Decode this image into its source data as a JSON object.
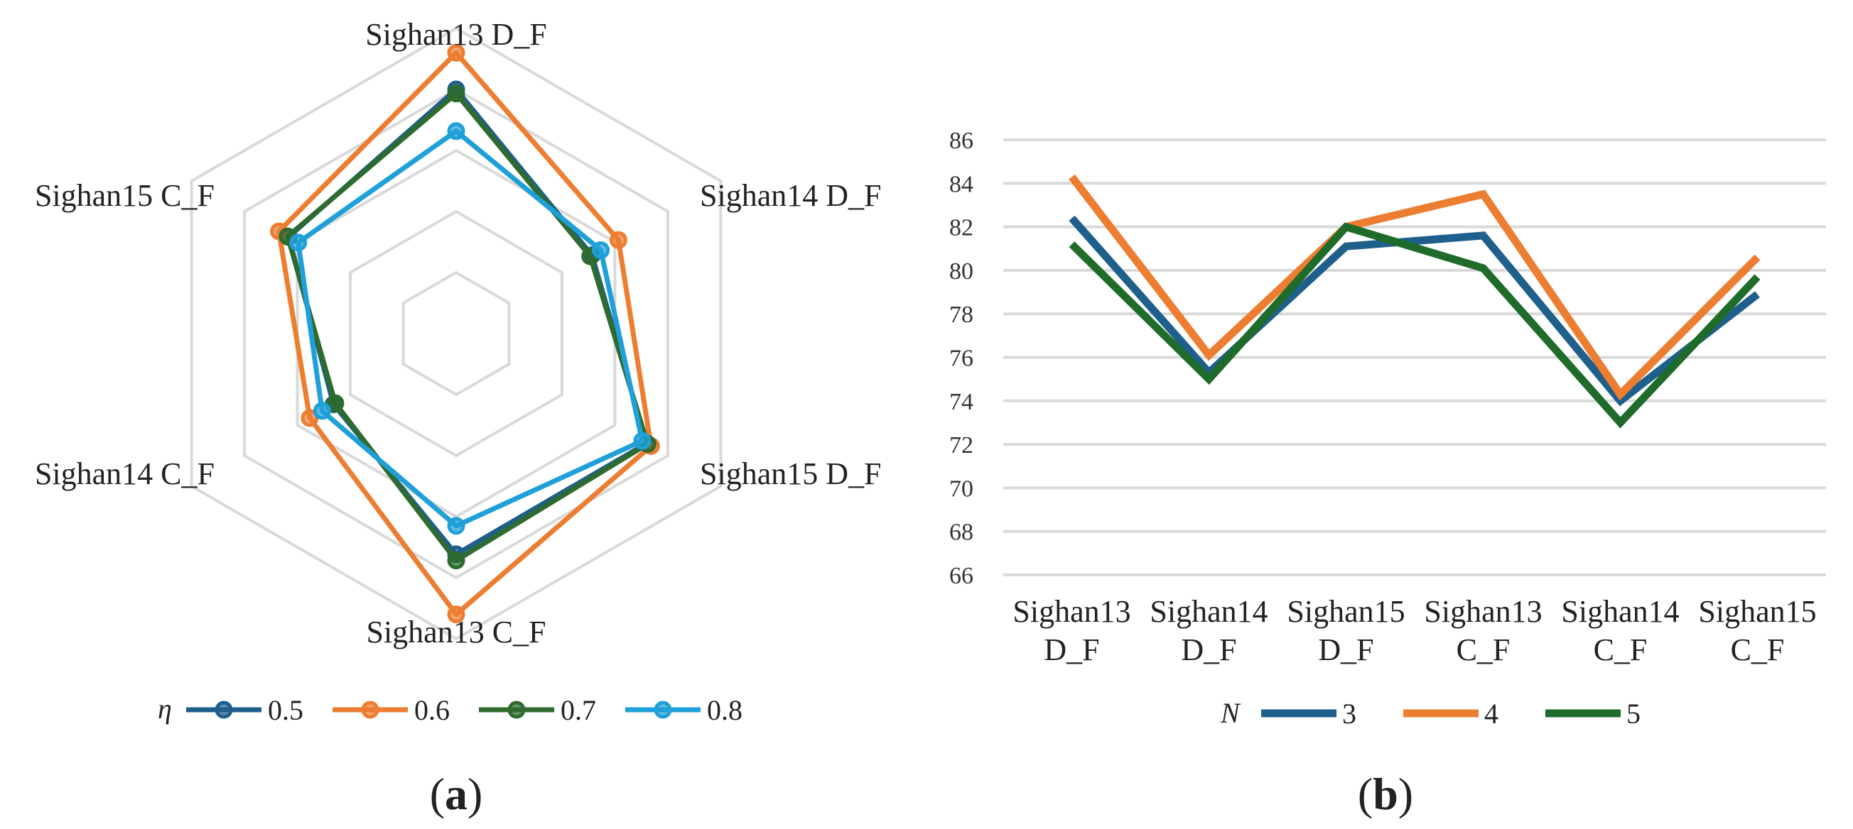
{
  "chart_data": [
    {
      "type": "radar",
      "panel_label": "(a)",
      "panel_label_parts": {
        "open": "(",
        "letter": "a",
        "close": ")"
      },
      "axes": [
        "Sighan13 D_F",
        "Sighan14 D_F",
        "Sighan15 D_F",
        "Sighan13 C_F",
        "Sighan14 C_F",
        "Sighan15 C_F"
      ],
      "rlim": [
        60,
        90
      ],
      "grid_levels": [
        66,
        72,
        78,
        84,
        90
      ],
      "legend": {
        "title": "η",
        "placement": "bottom"
      },
      "series": [
        {
          "name": "0.5",
          "color": "#1f5f8b",
          "values": [
            84.0,
            75.4,
            81.6,
            81.7,
            73.9,
            79.0
          ]
        },
        {
          "name": "0.6",
          "color": "#ed7d31",
          "values": [
            87.6,
            78.4,
            82.1,
            87.6,
            76.6,
            80.1
          ]
        },
        {
          "name": "0.7",
          "color": "#2e6b2e",
          "values": [
            83.6,
            75.2,
            81.7,
            82.3,
            73.7,
            79.1
          ]
        },
        {
          "name": "0.8",
          "color": "#1fa0d8",
          "values": [
            79.9,
            76.4,
            81.1,
            78.9,
            75.2,
            77.9
          ]
        }
      ]
    },
    {
      "type": "line",
      "panel_label": "(b)",
      "panel_label_parts": {
        "open": "(",
        "letter": "b",
        "close": ")"
      },
      "categories": [
        [
          "Sighan13",
          "D_F"
        ],
        [
          "Sighan14",
          "D_F"
        ],
        [
          "Sighan15",
          "D_F"
        ],
        [
          "Sighan13",
          "C_F"
        ],
        [
          "Sighan14",
          "C_F"
        ],
        [
          "Sighan15",
          "C_F"
        ]
      ],
      "ylim": [
        66,
        86
      ],
      "yticks": [
        66,
        68,
        70,
        72,
        74,
        76,
        78,
        80,
        82,
        84,
        86
      ],
      "grid": true,
      "legend": {
        "title": "N",
        "placement": "bottom"
      },
      "series": [
        {
          "name": "3",
          "color": "#1f5f8b",
          "values": [
            82.4,
            75.3,
            81.1,
            81.6,
            74.0,
            78.9
          ]
        },
        {
          "name": "4",
          "color": "#ed7d31",
          "values": [
            84.3,
            76.1,
            82.0,
            83.5,
            74.3,
            80.6
          ]
        },
        {
          "name": "5",
          "color": "#1e6b2a",
          "values": [
            81.2,
            75.0,
            82.0,
            80.1,
            73.0,
            79.7
          ]
        }
      ]
    }
  ]
}
